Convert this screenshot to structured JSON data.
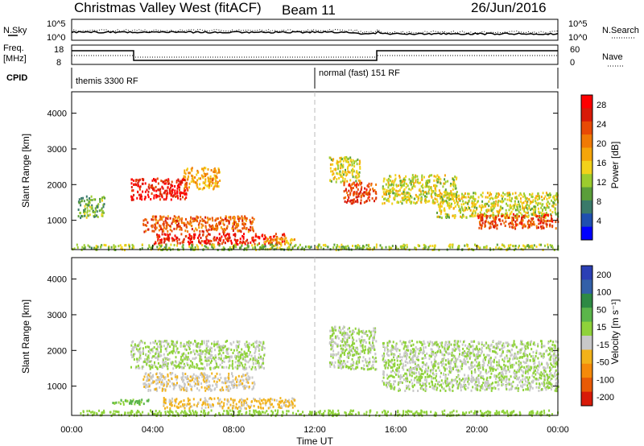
{
  "header": {
    "station": "Christmas Valley West (fitACF)",
    "beam": "Beam 11",
    "date": "26/Jun/2016"
  },
  "labels": {
    "nsky": "N.Sky",
    "nsearch": "N.Search",
    "freq": "Freq.",
    "freq_unit": "[MHz]",
    "nave": "Nave",
    "cpid": "CPID",
    "cpid_left": "themis 3300 RF",
    "cpid_right": "normal (fast) 151 RF",
    "range_label": "Slant Range [km]",
    "time_label": "Time UT",
    "power_label": "Power [dB]",
    "velocity_label": "Velocity [m s⁻¹]"
  },
  "noise_axis": {
    "left_top": "10^5",
    "left_bottom": "10^0",
    "right_top": "10^5",
    "right_bottom": "10^0"
  },
  "freq_axis": {
    "left": [
      "18",
      "8"
    ],
    "right": [
      "60",
      "0"
    ]
  },
  "chart_data": [
    {
      "type": "heatmap",
      "name": "Power",
      "xlabel": "Time UT",
      "ylabel": "Slant Range [km]",
      "x_ticks": [
        "00:00",
        "04:00",
        "08:00",
        "12:00",
        "16:00",
        "20:00",
        "00:00"
      ],
      "y_ticks": [
        "1000",
        "2000",
        "3000",
        "4000"
      ],
      "xlim_hours": [
        0,
        24
      ],
      "ylim_km": [
        180,
        4600
      ],
      "colorbar": {
        "label": "Power [dB]",
        "ticks": [
          "4",
          "8",
          "12",
          "16",
          "20",
          "24",
          "28"
        ],
        "range": [
          0,
          30
        ],
        "colors": [
          "#0000ff",
          "#1f4fb0",
          "#3a7a6a",
          "#5a9e3a",
          "#9ccc2e",
          "#f2d21a",
          "#f5a50a",
          "#f07a05",
          "#e84a05",
          "#d81a08",
          "#ff0000"
        ]
      },
      "regions": [
        {
          "t": [
            0.3,
            1.6
          ],
          "r": [
            1100,
            1700
          ],
          "v": 10
        },
        {
          "t": [
            2.9,
            5.7
          ],
          "r": [
            1600,
            2200
          ],
          "v": 27
        },
        {
          "t": [
            5.5,
            7.3
          ],
          "r": [
            1900,
            2500
          ],
          "v": 18
        },
        {
          "t": [
            3.5,
            9.0
          ],
          "r": [
            700,
            1150
          ],
          "v": 22
        },
        {
          "t": [
            4.0,
            10.5
          ],
          "r": [
            350,
            650
          ],
          "v": 26
        },
        {
          "t": [
            9.5,
            11.0
          ],
          "r": [
            350,
            550
          ],
          "v": 18
        },
        {
          "t": [
            0.0,
            24.0
          ],
          "r": [
            200,
            350
          ],
          "v": 12
        },
        {
          "t": [
            12.7,
            14.2
          ],
          "r": [
            2100,
            2800
          ],
          "v": 14
        },
        {
          "t": [
            13.4,
            15.0
          ],
          "r": [
            1500,
            2100
          ],
          "v": 24
        },
        {
          "t": [
            15.3,
            19.0
          ],
          "r": [
            1500,
            2300
          ],
          "v": 14
        },
        {
          "t": [
            18.0,
            24.0
          ],
          "r": [
            1100,
            1800
          ],
          "v": 14
        },
        {
          "t": [
            20.0,
            24.0
          ],
          "r": [
            800,
            1200
          ],
          "v": 24
        }
      ]
    },
    {
      "type": "heatmap",
      "name": "Velocity",
      "xlabel": "Time UT",
      "ylabel": "Slant Range [km]",
      "x_ticks": [
        "00:00",
        "04:00",
        "08:00",
        "12:00",
        "16:00",
        "20:00",
        "00:00"
      ],
      "y_ticks": [
        "1000",
        "2000",
        "3000",
        "4000"
      ],
      "xlim_hours": [
        0,
        24
      ],
      "ylim_km": [
        180,
        4600
      ],
      "colorbar": {
        "label": "Velocity [m s⁻¹]",
        "ticks": [
          "200",
          "100",
          "50",
          "15",
          "-15",
          "-50",
          "-100",
          "-200"
        ],
        "range": [
          -250,
          250
        ],
        "colors": [
          "#2b3fb5",
          "#3360a8",
          "#2e8a44",
          "#5bb54a",
          "#8fd23a",
          "#c8c8c8",
          "#f2b21a",
          "#f58a0a",
          "#e85a06",
          "#d81a08"
        ]
      },
      "regions": [
        {
          "t": [
            2.9,
            9.5
          ],
          "r": [
            1500,
            2300
          ],
          "v": 0
        },
        {
          "t": [
            3.5,
            9.0
          ],
          "r": [
            900,
            1400
          ],
          "v": -40
        },
        {
          "t": [
            4.5,
            11.0
          ],
          "r": [
            400,
            700
          ],
          "v": -60
        },
        {
          "t": [
            2.0,
            3.8
          ],
          "r": [
            500,
            650
          ],
          "v": 60
        },
        {
          "t": [
            0.0,
            24.0
          ],
          "r": [
            200,
            350
          ],
          "v": 30
        },
        {
          "t": [
            12.7,
            15.0
          ],
          "r": [
            1500,
            2700
          ],
          "v": 0
        },
        {
          "t": [
            15.3,
            24.0
          ],
          "r": [
            900,
            2300
          ],
          "v": 0
        }
      ]
    }
  ]
}
